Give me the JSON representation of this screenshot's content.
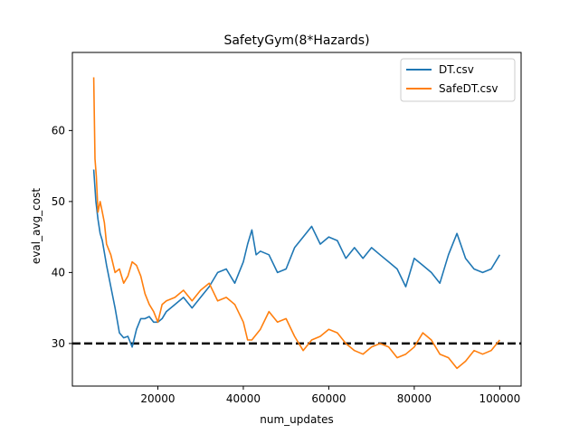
{
  "chart_data": {
    "type": "line",
    "title": "SafetyGym(8*Hazards)",
    "xlabel": "num_updates",
    "ylabel": "eval_avg_cost",
    "xlim": [
      0,
      105000
    ],
    "ylim": [
      24,
      71
    ],
    "xticks": [
      20000,
      40000,
      60000,
      80000,
      100000
    ],
    "xtick_labels": [
      "20000",
      "40000",
      "60000",
      "80000",
      "100000"
    ],
    "yticks": [
      30,
      40,
      50,
      60
    ],
    "ytick_labels": [
      "30",
      "40",
      "50",
      "60"
    ],
    "grid": false,
    "legend_position": "top-right",
    "reference_line": {
      "y": 30,
      "style": "dashed",
      "color": "#000000"
    },
    "series": [
      {
        "name": "DT.csv",
        "color": "#1f77b4",
        "x": [
          5000,
          5500,
          6000,
          6500,
          7000,
          8000,
          9000,
          10000,
          11000,
          12000,
          13000,
          14000,
          15000,
          16000,
          17000,
          18000,
          19000,
          20000,
          21000,
          22000,
          24000,
          26000,
          28000,
          30000,
          32000,
          34000,
          36000,
          38000,
          40000,
          41000,
          42000,
          43000,
          44000,
          46000,
          48000,
          50000,
          52000,
          54000,
          56000,
          58000,
          60000,
          62000,
          64000,
          66000,
          68000,
          70000,
          72000,
          74000,
          76000,
          78000,
          80000,
          82000,
          84000,
          86000,
          88000,
          90000,
          92000,
          94000,
          96000,
          98000,
          100000
        ],
        "y": [
          54.5,
          50.0,
          47.5,
          45.5,
          44.5,
          41.0,
          38.0,
          35.0,
          31.5,
          30.8,
          31.0,
          29.5,
          32.0,
          33.5,
          33.5,
          33.8,
          33.0,
          33.0,
          33.5,
          34.5,
          35.5,
          36.5,
          35.0,
          36.5,
          38.0,
          40.0,
          40.5,
          38.5,
          41.5,
          44.0,
          46.0,
          42.5,
          43.0,
          42.5,
          40.0,
          40.5,
          43.5,
          45.0,
          46.5,
          44.0,
          45.0,
          44.5,
          42.0,
          43.5,
          42.0,
          43.5,
          42.5,
          41.5,
          40.5,
          38.0,
          42.0,
          41.0,
          40.0,
          38.5,
          42.5,
          45.5,
          42.0,
          40.5,
          40.0,
          40.5,
          42.5
        ]
      },
      {
        "name": "SafeDT.csv",
        "color": "#ff7f0e",
        "x": [
          5000,
          5300,
          5600,
          6000,
          6500,
          7000,
          7500,
          8000,
          9000,
          10000,
          11000,
          12000,
          13000,
          14000,
          15000,
          16000,
          17000,
          18000,
          19000,
          20000,
          21000,
          22000,
          24000,
          26000,
          28000,
          30000,
          32000,
          34000,
          36000,
          38000,
          40000,
          41000,
          42000,
          44000,
          46000,
          48000,
          50000,
          52000,
          54000,
          56000,
          58000,
          60000,
          62000,
          64000,
          66000,
          68000,
          70000,
          72000,
          74000,
          76000,
          78000,
          80000,
          82000,
          84000,
          86000,
          88000,
          90000,
          92000,
          94000,
          96000,
          98000,
          100000
        ],
        "y": [
          67.5,
          56.0,
          53.5,
          48.5,
          50.0,
          48.5,
          47.0,
          44.0,
          42.5,
          40.0,
          40.5,
          38.5,
          39.5,
          41.5,
          41.0,
          39.5,
          37.0,
          35.5,
          34.5,
          33.0,
          35.5,
          36.0,
          36.5,
          37.5,
          36.0,
          37.5,
          38.5,
          36.0,
          36.5,
          35.5,
          33.0,
          30.5,
          30.5,
          32.0,
          34.5,
          33.0,
          33.5,
          31.0,
          29.0,
          30.5,
          31.0,
          32.0,
          31.5,
          30.0,
          29.0,
          28.5,
          29.5,
          30.0,
          29.5,
          28.0,
          28.5,
          29.5,
          31.5,
          30.5,
          28.5,
          28.0,
          26.5,
          27.5,
          29.0,
          28.5,
          29.0,
          30.5
        ]
      }
    ]
  }
}
